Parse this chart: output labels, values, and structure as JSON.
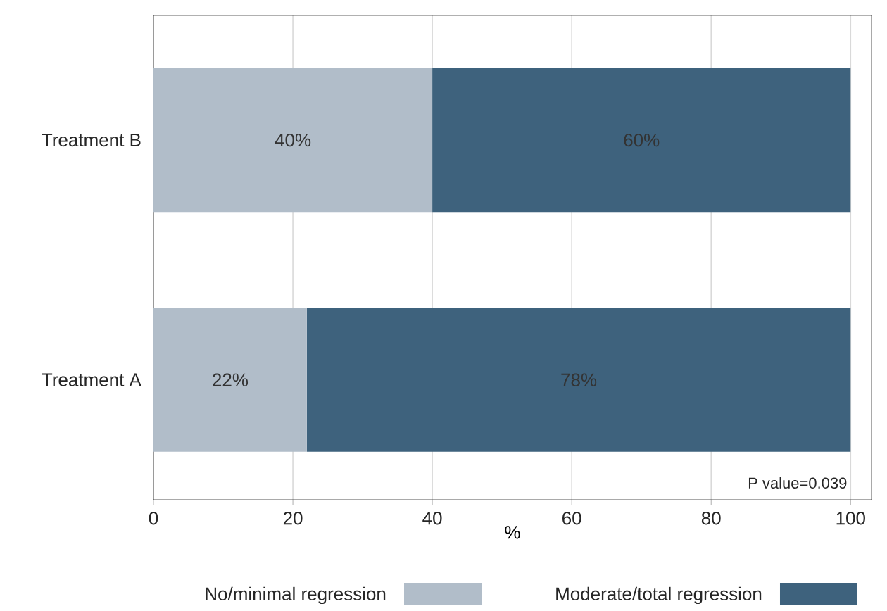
{
  "chart_data": {
    "type": "bar",
    "orientation": "horizontal",
    "stacked": true,
    "categories": [
      "Treatment B",
      "Treatment A"
    ],
    "series": [
      {
        "name": "No/minimal regression",
        "color": "#b1bdc9",
        "values": [
          40,
          22
        ],
        "value_labels": [
          "40%",
          "22%"
        ]
      },
      {
        "name": "Moderate/total regression",
        "color": "#3e627d",
        "values": [
          60,
          78
        ],
        "value_labels": [
          "60%",
          "78%"
        ]
      }
    ],
    "xlabel": "%",
    "xlim": [
      0,
      103
    ],
    "xticks": [
      0,
      20,
      40,
      60,
      80,
      100
    ],
    "grid": "x",
    "legend": "bottom",
    "annotations": [
      "P value=0.039"
    ]
  }
}
